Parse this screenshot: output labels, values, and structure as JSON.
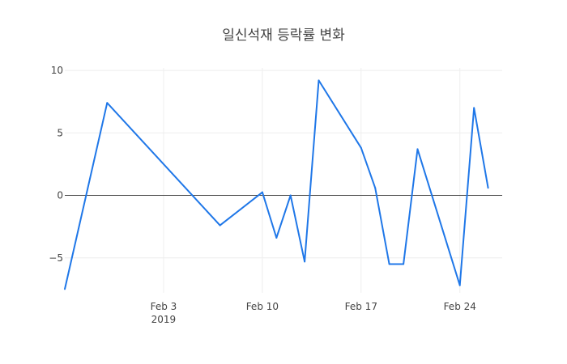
{
  "chart_data": {
    "type": "line",
    "title": "일신석재 등락률 변화",
    "xlabel": "",
    "ylabel": "",
    "x_axis": {
      "type": "date",
      "range": [
        "2019-01-27",
        "2019-02-27"
      ],
      "ticks": [
        {
          "value": "2019-02-03",
          "label": "Feb 3",
          "sublabel": "2019"
        },
        {
          "value": "2019-02-10",
          "label": "Feb 10",
          "sublabel": ""
        },
        {
          "value": "2019-02-17",
          "label": "Feb 17",
          "sublabel": ""
        },
        {
          "value": "2019-02-24",
          "label": "Feb 24",
          "sublabel": ""
        }
      ]
    },
    "y_axis": {
      "range": [
        -7.8,
        10.2
      ],
      "ticks": [
        10,
        5,
        0,
        -5
      ],
      "tick_labels": [
        "10",
        "5",
        "0",
        "−5"
      ],
      "zeroline": true
    },
    "grid": true,
    "series": [
      {
        "color": "#1f77e8",
        "points": [
          {
            "x": "2019-01-27",
            "y": -7.5
          },
          {
            "x": "2019-01-30",
            "y": 7.4
          },
          {
            "x": "2019-02-07",
            "y": -2.4
          },
          {
            "x": "2019-02-10",
            "y": 0.25
          },
          {
            "x": "2019-02-11",
            "y": -3.4
          },
          {
            "x": "2019-02-12",
            "y": 0.0
          },
          {
            "x": "2019-02-13",
            "y": -5.3
          },
          {
            "x": "2019-02-14",
            "y": 9.2
          },
          {
            "x": "2019-02-17",
            "y": 3.8
          },
          {
            "x": "2019-02-18",
            "y": 0.6
          },
          {
            "x": "2019-02-19",
            "y": -5.5
          },
          {
            "x": "2019-02-20",
            "y": -5.5
          },
          {
            "x": "2019-02-21",
            "y": 3.7
          },
          {
            "x": "2019-02-24",
            "y": -7.2
          },
          {
            "x": "2019-02-25",
            "y": 7.0
          },
          {
            "x": "2019-02-26",
            "y": 0.6
          }
        ]
      }
    ]
  }
}
